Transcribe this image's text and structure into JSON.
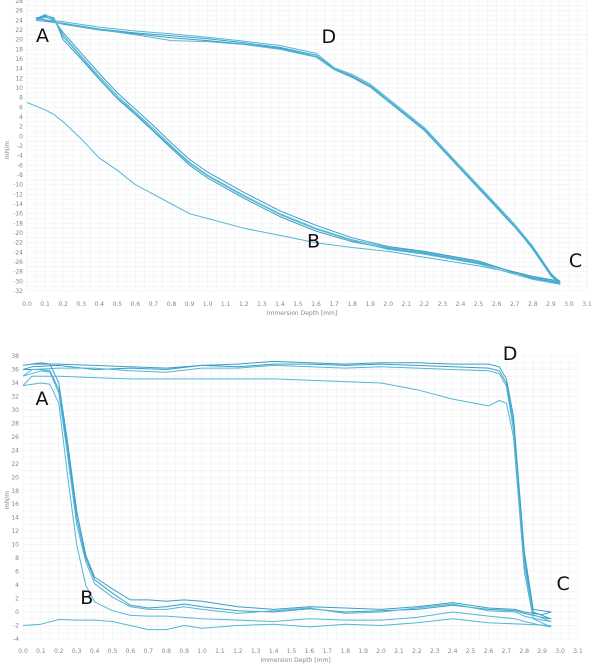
{
  "colors": {
    "series": "#55b6d6",
    "series_dark": "#3a9fc6",
    "grid": "#eef0f2",
    "tick": "#888888"
  },
  "chart_data": [
    {
      "type": "line",
      "xlabel": "Immersion Depth [mm]",
      "ylabel": "mN/m",
      "xlim": [
        0.0,
        3.1
      ],
      "ylim": [
        -32,
        28
      ],
      "xticks": [
        "0.0",
        "0.1",
        "0.2",
        "0.3",
        "0.4",
        "0.5",
        "0.6",
        "0.7",
        "0.8",
        "0.9",
        "1.0",
        "1.1",
        "1.2",
        "1.3",
        "1.4",
        "1.5",
        "1.6",
        "1.7",
        "1.8",
        "1.9",
        "2.0",
        "2.1",
        "2.2",
        "2.3",
        "2.4",
        "2.5",
        "2.6",
        "2.7",
        "2.8",
        "2.9",
        "3.0",
        "3.1"
      ],
      "yticks": [
        "28",
        "26",
        "24",
        "22",
        "20",
        "18",
        "16",
        "14",
        "12",
        "10",
        "8",
        "6",
        "4",
        "2",
        "0",
        "-2",
        "-4",
        "-6",
        "-8",
        "-10",
        "-12",
        "-14",
        "-16",
        "-18",
        "-20",
        "-22",
        "-24",
        "-26",
        "-28",
        "-30",
        "-32"
      ],
      "grid": true,
      "annotations": [
        {
          "text": "A",
          "x": 0.05,
          "y": 19.5
        },
        {
          "text": "D",
          "x": 1.63,
          "y": 19.3
        },
        {
          "text": "B",
          "x": 1.55,
          "y": -23
        },
        {
          "text": "C",
          "x": 3.0,
          "y": -27
        }
      ],
      "series": [
        {
          "x": [
            0.0,
            0.1,
            0.15,
            0.2,
            0.3,
            0.4,
            0.5,
            0.6,
            0.7,
            0.8,
            0.9,
            1.0,
            1.2,
            1.4,
            1.6,
            1.8,
            2.0,
            2.2,
            2.5,
            2.8,
            2.95
          ],
          "y": [
            7,
            5.5,
            4.5,
            3,
            -0.5,
            -4.5,
            -7,
            -10,
            -12,
            -14,
            -16,
            -17,
            -19,
            -20.5,
            -22,
            -23,
            -23.8,
            -25,
            -26.8,
            -29,
            -30
          ]
        },
        {
          "x": [
            0.05,
            0.1,
            0.15,
            0.2,
            0.3,
            0.4,
            0.5,
            0.6,
            0.7,
            0.8,
            0.9,
            1.0,
            1.2,
            1.4,
            1.6,
            1.8,
            2.0,
            2.2,
            2.5,
            2.8,
            2.95,
            2.9,
            2.8,
            2.7,
            2.6,
            2.4,
            2.2,
            2.0,
            1.9,
            1.8,
            1.7,
            1.6,
            1.4,
            1.2,
            1.0,
            0.8,
            0.6,
            0.4,
            0.2,
            0.05
          ],
          "y": [
            24,
            25,
            24.5,
            20,
            16,
            11.8,
            7.8,
            4.5,
            1,
            -2.5,
            -6,
            -8.6,
            -12.8,
            -16.6,
            -19.6,
            -21.8,
            -23.2,
            -24.2,
            -26.2,
            -29,
            -30,
            -28.5,
            -23,
            -18.5,
            -14.5,
            -6.5,
            1.5,
            7.5,
            10.5,
            12.5,
            14,
            16.8,
            18.4,
            19.4,
            20.2,
            20.8,
            21.4,
            22.2,
            23.4,
            24
          ]
        },
        {
          "x": [
            0.05,
            0.1,
            0.15,
            0.2,
            0.3,
            0.4,
            0.5,
            0.6,
            0.7,
            0.8,
            0.9,
            1.0,
            1.2,
            1.4,
            1.6,
            1.8,
            2.0,
            2.2,
            2.5,
            2.8,
            2.95,
            2.9,
            2.8,
            2.7,
            2.6,
            2.4,
            2.2,
            2.0,
            1.9,
            1.8,
            1.7,
            1.6,
            1.4,
            1.2,
            1.0,
            0.8,
            0.6,
            0.4,
            0.2,
            0.05
          ],
          "y": [
            24.3,
            25.2,
            24.2,
            21,
            16.6,
            12.4,
            8.4,
            5,
            1.6,
            -2,
            -5.4,
            -8,
            -12.2,
            -16,
            -19,
            -21.4,
            -23,
            -24,
            -26,
            -29.2,
            -30.2,
            -28.3,
            -22.8,
            -18.2,
            -14.2,
            -6.2,
            1.8,
            7.8,
            10.8,
            12.8,
            14.2,
            17.2,
            18.8,
            19.7,
            20.5,
            21.2,
            21.8,
            22.6,
            23.7,
            24.3
          ]
        },
        {
          "x": [
            0.05,
            0.1,
            0.15,
            0.2,
            0.3,
            0.4,
            0.5,
            0.6,
            0.7,
            0.8,
            0.9,
            1.0,
            1.2,
            1.4,
            1.6,
            1.8,
            2.0,
            2.2,
            2.5,
            2.8,
            2.95,
            2.9,
            2.8,
            2.7,
            2.6,
            2.4,
            2.2,
            2.0,
            1.9,
            1.8,
            1.7,
            1.6,
            1.4,
            1.2,
            1.0,
            0.8,
            0.6,
            0.4,
            0.2,
            0.05
          ],
          "y": [
            24.5,
            24.8,
            24,
            21.5,
            17.2,
            13,
            9,
            5.6,
            2.2,
            -1.4,
            -4.8,
            -7.4,
            -11.6,
            -15.4,
            -18.4,
            -21,
            -22.8,
            -23.8,
            -25.8,
            -29.4,
            -30.4,
            -28.7,
            -23.2,
            -18.8,
            -14.8,
            -6.8,
            1.2,
            7.2,
            10.2,
            12.2,
            13.8,
            16.5,
            18.2,
            19.1,
            19.8,
            20.4,
            21.2,
            22,
            23.2,
            24.5
          ]
        },
        {
          "x": [
            0.05,
            0.1,
            0.15,
            0.2,
            0.3,
            0.4,
            0.5,
            0.6,
            0.7,
            0.8,
            0.9,
            1.0,
            1.2,
            1.4,
            1.6,
            1.8,
            2.0,
            2.2,
            2.5,
            2.8,
            2.95,
            2.9,
            2.8,
            2.7,
            2.6,
            2.4,
            2.2,
            2.0,
            1.9,
            1.8,
            1.7,
            1.6,
            1.4,
            1.2,
            1.0,
            0.8,
            0.6,
            0.4,
            0.2,
            0.05
          ],
          "y": [
            24,
            24.6,
            24.2,
            20.6,
            16.4,
            12,
            8,
            4.8,
            1.2,
            -2.2,
            -5.6,
            -8.2,
            -12.4,
            -16.2,
            -19.2,
            -21.6,
            -23.4,
            -24.4,
            -26.4,
            -29.6,
            -30.6,
            -28.9,
            -23.4,
            -18.6,
            -14.6,
            -6.6,
            1.4,
            7.4,
            10.4,
            12.4,
            13.9,
            16.4,
            18,
            19,
            19.6,
            19.8,
            21,
            22.1,
            23.3,
            24
          ]
        }
      ]
    },
    {
      "type": "line",
      "xlabel": "Immersion Depth [mm]",
      "ylabel": "mN/m",
      "xlim": [
        0.0,
        3.1
      ],
      "ylim": [
        -4,
        38
      ],
      "xticks": [
        "0.0",
        "0.1",
        "0.2",
        "0.3",
        "0.4",
        "0.5",
        "0.6",
        "0.7",
        "0.8",
        "0.9",
        "1.0",
        "1.1",
        "1.2",
        "1.3",
        "1.4",
        "1.5",
        "1.6",
        "1.7",
        "1.8",
        "1.9",
        "2.0",
        "2.1",
        "2.2",
        "2.3",
        "2.4",
        "2.5",
        "2.6",
        "2.7",
        "2.8",
        "2.9",
        "3.0",
        "3.1"
      ],
      "yticks": [
        "38",
        "36",
        "34",
        "32",
        "30",
        "28",
        "26",
        "24",
        "22",
        "20",
        "18",
        "16",
        "14",
        "12",
        "10",
        "8",
        "6",
        "4",
        "2",
        "0",
        "-2",
        "-4"
      ],
      "grid": true,
      "annotations": [
        {
          "text": "A",
          "x": 0.07,
          "y": 30.7
        },
        {
          "text": "B",
          "x": 0.32,
          "y": 1.2
        },
        {
          "text": "D",
          "x": 2.68,
          "y": 37.4
        },
        {
          "text": "C",
          "x": 2.98,
          "y": 3.3
        }
      ],
      "series": [
        {
          "x": [
            0.0,
            0.1,
            0.2,
            0.3,
            0.4,
            0.5,
            0.6,
            0.7,
            0.8,
            0.9,
            1.0,
            1.2,
            1.4,
            1.6,
            1.8,
            2.0,
            2.2,
            2.4,
            2.6,
            2.8,
            2.95
          ],
          "y": [
            -2,
            -1.8,
            -1.1,
            -1.2,
            -1.2,
            -1.4,
            -2,
            -2.6,
            -2.6,
            -2,
            -2.4,
            -2,
            -1.8,
            -2.2,
            -1.8,
            -2,
            -1.6,
            -1,
            -1.6,
            -1.8,
            -2
          ]
        },
        {
          "x": [
            0.0,
            0.1,
            0.15,
            0.2,
            0.25,
            0.3,
            0.35,
            0.4,
            0.5,
            0.6,
            0.7,
            0.8,
            0.9,
            1.0,
            1.2,
            1.4,
            1.6,
            1.8,
            2.0,
            2.2,
            2.4,
            2.6,
            2.75,
            2.8,
            2.9,
            2.95,
            2.85,
            2.8,
            2.77,
            2.74,
            2.7,
            2.66,
            2.6,
            2.4,
            2.2,
            2.0,
            1.8,
            1.6,
            1.4,
            1.2,
            1.0,
            0.8,
            0.6,
            0.4,
            0.2,
            0.05,
            0.0
          ],
          "y": [
            36,
            36,
            35.8,
            33,
            24,
            14,
            8,
            4.8,
            2.8,
            1,
            0.6,
            0.8,
            1.2,
            0.8,
            0.2,
            0,
            0.5,
            0,
            0.2,
            0.4,
            1,
            0.4,
            0.2,
            -0.2,
            -0.8,
            -1,
            0,
            8,
            18,
            28,
            34,
            35.8,
            36.2,
            36.4,
            36.6,
            36.8,
            36.6,
            36.8,
            36.8,
            36.4,
            36.6,
            36,
            36.2,
            36,
            36.6,
            36.4,
            36
          ]
        },
        {
          "x": [
            0.0,
            0.1,
            0.15,
            0.2,
            0.25,
            0.3,
            0.35,
            0.4,
            0.5,
            0.6,
            0.7,
            0.8,
            0.9,
            1.0,
            1.2,
            1.4,
            1.6,
            1.8,
            2.0,
            2.2,
            2.4,
            2.6,
            2.75,
            2.8,
            2.9,
            2.95,
            2.85,
            2.8,
            2.77,
            2.74,
            2.7,
            2.66,
            2.6,
            2.4,
            2.2,
            2.0,
            1.8,
            1.6,
            1.4,
            1.2,
            1.0,
            0.8,
            0.6,
            0.4,
            0.2,
            0.05,
            0.0
          ],
          "y": [
            35,
            35.8,
            35.6,
            32.5,
            23,
            13,
            7.5,
            4.2,
            2.2,
            0.8,
            0.4,
            0.4,
            0.8,
            0.4,
            -0.2,
            0.2,
            0.6,
            -0.2,
            0,
            0.6,
            1.2,
            0.2,
            0,
            -0.6,
            -1.2,
            -1.4,
            -0.4,
            7,
            17,
            27,
            33.5,
            35.4,
            35.8,
            36,
            36.2,
            36.4,
            36.2,
            36.4,
            36.6,
            36.2,
            36.2,
            35.6,
            35.8,
            36.2,
            36.2,
            36,
            35
          ]
        },
        {
          "x": [
            0.0,
            0.1,
            0.15,
            0.2,
            0.25,
            0.3,
            0.35,
            0.4,
            0.5,
            0.6,
            0.7,
            0.8,
            0.9,
            1.0,
            1.2,
            1.4,
            1.6,
            1.8,
            2.0,
            2.2,
            2.4,
            2.6,
            2.75,
            2.8,
            2.9,
            2.95,
            2.85,
            2.8,
            2.77,
            2.74,
            2.7,
            2.66,
            2.6,
            2.4,
            2.2,
            2.0,
            1.8,
            1.6,
            1.4,
            1.2,
            1.0,
            0.8,
            0.6,
            0.4,
            0.2,
            0.05,
            0.0
          ],
          "y": [
            36.6,
            37,
            36.8,
            34,
            25,
            15,
            8.5,
            5.2,
            3.4,
            1.8,
            1.8,
            1.6,
            1.8,
            1.6,
            0.8,
            0.4,
            0.8,
            0.6,
            0.4,
            0.8,
            1.4,
            0.6,
            0.4,
            0,
            -0.4,
            0,
            0.4,
            9,
            19,
            29,
            34.6,
            36.4,
            36.8,
            36.8,
            37,
            37,
            36.8,
            37,
            37.2,
            36.8,
            36.6,
            36.2,
            36.4,
            36.6,
            36.8,
            36.8,
            36.6
          ]
        },
        {
          "x": [
            0.0,
            0.1,
            0.15,
            0.2,
            0.25,
            0.3,
            0.35,
            0.4,
            0.5,
            0.6,
            0.7,
            0.8,
            0.9,
            1.0,
            1.2,
            1.4,
            1.6,
            1.8,
            2.0,
            2.2,
            2.4,
            2.6,
            2.75,
            2.8,
            2.9,
            2.95,
            2.85,
            2.8,
            2.77,
            2.74,
            2.7,
            2.66,
            2.6,
            2.4,
            2.2,
            2.0,
            1.8,
            1.6,
            1.4,
            1.2,
            1.0,
            0.8,
            0.6,
            0.4,
            0.2,
            0.05,
            0.0
          ],
          "y": [
            33.6,
            34,
            33.8,
            31,
            20,
            10,
            4,
            1.5,
            0.2,
            -0.5,
            -0.6,
            -0.6,
            -0.8,
            -1,
            -1.2,
            -1.4,
            -1,
            -1.2,
            -1.2,
            -0.8,
            0,
            -0.6,
            -1,
            -1.4,
            -2,
            -2.2,
            -1,
            6,
            16,
            26,
            31,
            31.4,
            30.6,
            31.6,
            33,
            34,
            34.2,
            34.4,
            34.6,
            34.6,
            34.6,
            34.6,
            34.6,
            34.8,
            35,
            35,
            33.6
          ]
        }
      ]
    }
  ]
}
